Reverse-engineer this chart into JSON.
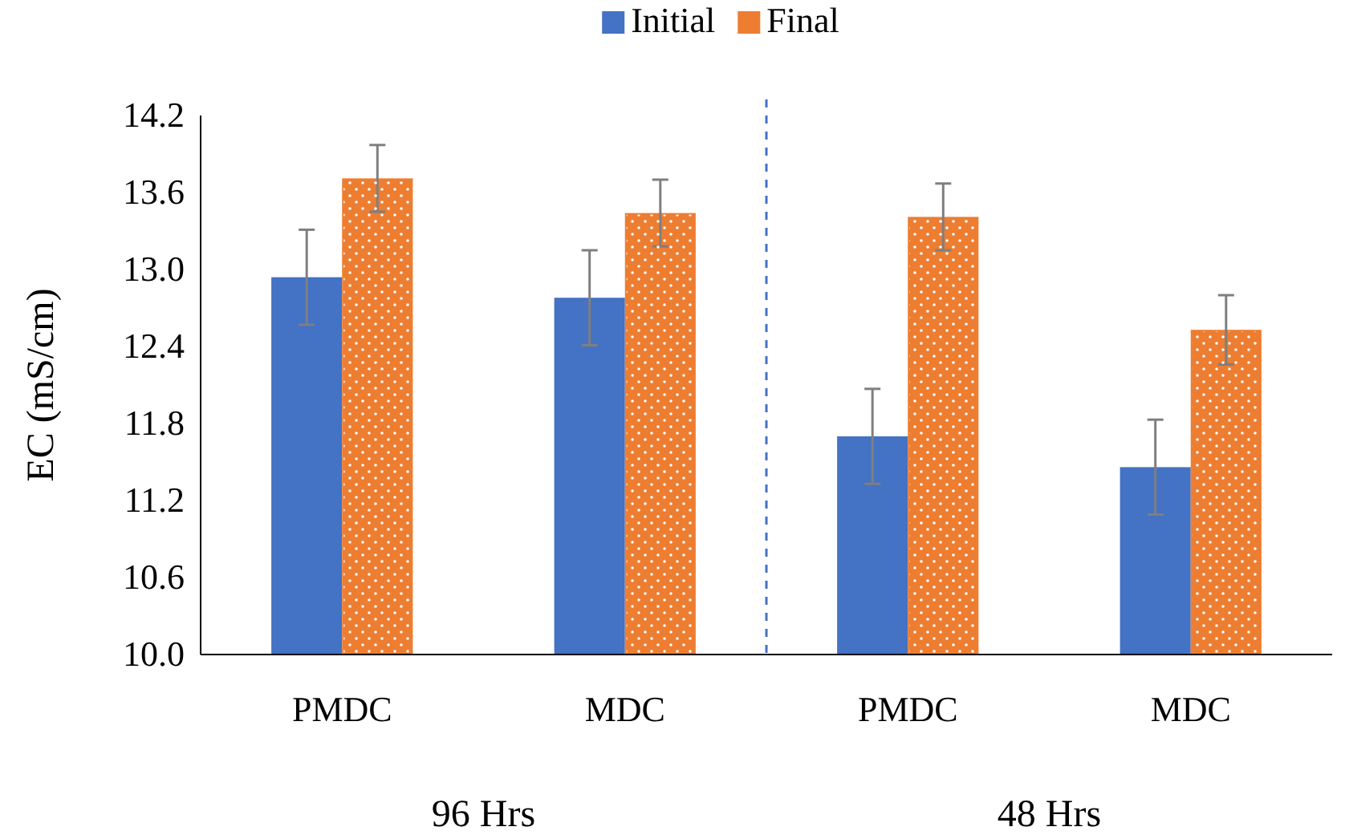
{
  "chart_data": {
    "type": "bar",
    "ylabel": "EC (mS/cm)",
    "categories": [
      "PMDC",
      "MDC",
      "PMDC",
      "MDC"
    ],
    "series": [
      {
        "name": "Initial",
        "color": "#4472c4",
        "values": [
          12.94,
          12.78,
          11.7,
          11.46
        ],
        "errors": [
          0.37,
          0.37,
          0.37,
          0.37
        ]
      },
      {
        "name": "Final",
        "color": "#ed7d31",
        "values": [
          13.71,
          13.44,
          13.41,
          12.53
        ],
        "errors": [
          0.26,
          0.26,
          0.26,
          0.27
        ]
      }
    ],
    "ylim": [
      10.0,
      14.2
    ],
    "yticks": [
      {
        "value": 10,
        "label": "10.0"
      },
      {
        "value": 10.6,
        "label": "10.6"
      },
      {
        "value": 11.2,
        "label": "11.2"
      },
      {
        "value": 11.8,
        "label": "11.8"
      },
      {
        "value": 12.4,
        "label": "12.4"
      },
      {
        "value": 13,
        "label": "13.0"
      },
      {
        "value": 13.6,
        "label": "13.6"
      },
      {
        "value": 14.2,
        "label": "14.2"
      }
    ],
    "annotations": [
      "96 Hrs",
      "48 Hrs"
    ],
    "legend": "top",
    "grid": false
  }
}
